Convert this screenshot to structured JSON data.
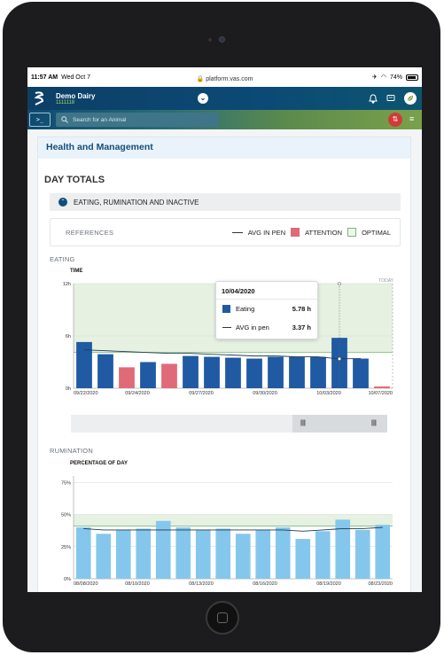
{
  "status": {
    "time": "11:57 AM",
    "date": "Wed Oct 7",
    "url": "platform.vas.com",
    "battery": "74%"
  },
  "app": {
    "farm_name": "Demo Dairy",
    "farm_id": "1111118"
  },
  "search": {
    "placeholder": "Search for an Animal",
    "terminal": ">_"
  },
  "card": {
    "title": "Health and Management"
  },
  "day_totals": {
    "title": "DAY TOTALS"
  },
  "accordion": {
    "label": "EATING, RUMINATION AND INACTIVE"
  },
  "references": {
    "title": "REFERENCES",
    "avg": "AVG IN PEN",
    "attention": "ATTENTION",
    "optimal": "OPTIMAL"
  },
  "colors": {
    "bar": "#1f5aa3",
    "attention": "#e06a78",
    "optimal_fill": "#e6f1e1",
    "rumination_bar": "#85c7ec",
    "accent": "#134e7a"
  },
  "eating": {
    "section": "EATING",
    "axis": "TIME",
    "today_label": "TODAY"
  },
  "rumination": {
    "section": "RUMINATION",
    "axis": "PERCENTAGE OF DAY"
  },
  "tooltip": {
    "date": "10/04/2020",
    "eating_label": "Eating",
    "eating_value": "5.78 h",
    "avg_label": "AVG in pen",
    "avg_value": "3.37 h"
  },
  "chart_data": [
    {
      "type": "bar",
      "title": "TIME",
      "y_ticks": [
        "12h",
        "6h",
        "0h"
      ],
      "ylim": [
        0,
        12
      ],
      "optimal_band": [
        4.1,
        12
      ],
      "x_labels": [
        "09/22/2020",
        "09/24/2020",
        "09/27/2020",
        "09/30/2020",
        "10/03/2020",
        "10/07/2020"
      ],
      "values": [
        5.3,
        3.9,
        2.4,
        3.0,
        2.8,
        3.7,
        3.6,
        3.5,
        3.4,
        3.6,
        3.6,
        3.6,
        5.78,
        3.4,
        0.2
      ],
      "status": [
        "normal",
        "normal",
        "attention",
        "normal",
        "attention",
        "normal",
        "normal",
        "normal",
        "normal",
        "normal",
        "normal",
        "normal",
        "normal",
        "normal",
        "attention"
      ],
      "avg_line": [
        4.4,
        4.3,
        4.2,
        4.1,
        4.0,
        4.0,
        3.9,
        3.8,
        3.7,
        3.7,
        3.6,
        3.6,
        3.37,
        3.4
      ],
      "grid": true
    },
    {
      "type": "bar",
      "title": "PERCENTAGE OF DAY",
      "y_ticks": [
        "75%",
        "50%",
        "25%",
        "0%"
      ],
      "ylim": [
        0,
        80
      ],
      "optimal_band": [
        41,
        50
      ],
      "x_labels": [
        "08/08/2020",
        "08/10/2020",
        "08/13/2020",
        "08/16/2020",
        "08/19/2020",
        "08/23/2020"
      ],
      "values": [
        40,
        35,
        38,
        39,
        45,
        40,
        38,
        39,
        35,
        38,
        40,
        31,
        37,
        46,
        38,
        42
      ],
      "avg_line": [
        39,
        38,
        38,
        38,
        38,
        38,
        38,
        38,
        38,
        38,
        38,
        37,
        38,
        39,
        39,
        40
      ],
      "grid": true
    }
  ]
}
